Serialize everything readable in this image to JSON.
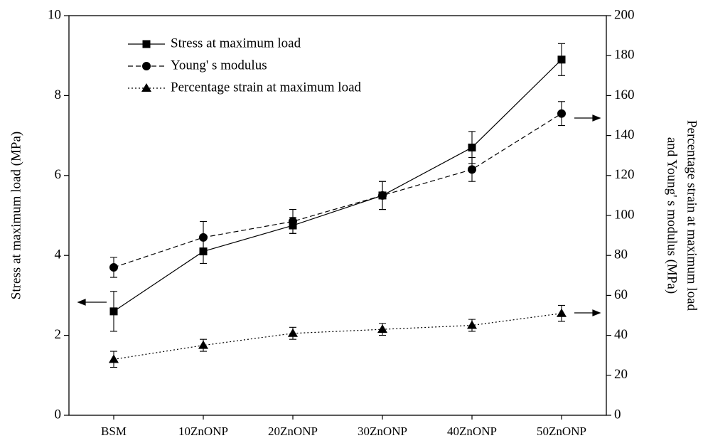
{
  "chart_data": {
    "type": "line",
    "y_label": "Stress at maximum load (MPa)",
    "y2_label": [
      "Percentage strain at maximum load",
      "and Young' s modulus (MPa)"
    ],
    "categories": [
      "BSM",
      "10ZnONP",
      "20ZnONP",
      "30ZnONP",
      "40ZnONP",
      "50ZnONP"
    ],
    "ylim": [
      0,
      10
    ],
    "yticks": [
      0,
      2,
      4,
      6,
      8,
      10
    ],
    "y2lim": [
      0,
      200
    ],
    "y2ticks": [
      0,
      20,
      40,
      60,
      80,
      100,
      120,
      140,
      160,
      180,
      200
    ],
    "legend": "upper left",
    "series": [
      {
        "name": "Stress at maximum load",
        "color": "#000000",
        "marker": "square",
        "line_style": "solid",
        "values": [
          2.6,
          4.1,
          4.75,
          5.5,
          6.7,
          8.9
        ],
        "errors": [
          0.5,
          0.3,
          0.2,
          0.35,
          0.4,
          0.4
        ]
      },
      {
        "name": "Young' s modulus",
        "color": "#000000",
        "marker": "circle",
        "line_style": "dashed",
        "axis": "y2",
        "values": [
          74,
          89,
          97,
          110,
          123,
          151
        ],
        "errors": [
          5,
          8,
          6,
          7,
          6,
          6
        ]
      },
      {
        "name": "Percentage strain at maximum load",
        "color": "#000000",
        "marker": "triangle",
        "line_style": "dotted",
        "axis": "y2",
        "values": [
          28,
          35,
          41,
          43,
          45,
          51
        ],
        "errors": [
          4,
          3,
          3,
          3,
          3,
          4
        ]
      }
    ]
  }
}
